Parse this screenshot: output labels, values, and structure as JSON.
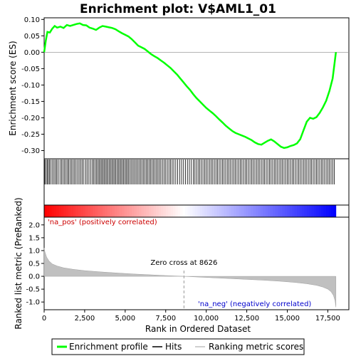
{
  "chart_data": {
    "type": "line",
    "title": "Enrichment plot: V$AML1_01",
    "es_panel": {
      "ylabel": "Enrichment score (ES)",
      "ylim": [
        -0.325,
        0.105
      ],
      "yticks": [
        "0.10",
        "0.05",
        "0.00",
        "-0.05",
        "-0.10",
        "-0.15",
        "-0.20",
        "-0.25",
        "-0.30"
      ],
      "ytick_values": [
        0.1,
        0.05,
        0.0,
        -0.05,
        -0.1,
        -0.15,
        -0.2,
        -0.25,
        -0.3
      ],
      "series": [
        {
          "name": "Enrichment profile",
          "color": "#00ff00",
          "x": [
            0,
            100,
            200,
            350,
            500,
            650,
            800,
            1000,
            1200,
            1400,
            1600,
            1800,
            2000,
            2200,
            2400,
            2600,
            2800,
            3000,
            3200,
            3400,
            3600,
            3800,
            4000,
            4200,
            4400,
            4600,
            4800,
            5000,
            5200,
            5400,
            5600,
            5800,
            6000,
            6200,
            6400,
            6600,
            6800,
            7000,
            7200,
            7400,
            7600,
            7800,
            8000,
            8200,
            8400,
            8600,
            8800,
            9000,
            9200,
            9400,
            9600,
            9800,
            10000,
            10200,
            10400,
            10600,
            10800,
            11000,
            11200,
            11400,
            11600,
            11800,
            12000,
            12200,
            12400,
            12600,
            12800,
            13000,
            13200,
            13400,
            13600,
            13800,
            14000,
            14200,
            14400,
            14600,
            14800,
            15000,
            15200,
            15400,
            15600,
            15800,
            16000,
            16200,
            16400,
            16600,
            16800,
            17000,
            17200,
            17400,
            17600,
            17800,
            17900,
            18000
          ],
          "y": [
            0.0,
            0.035,
            0.062,
            0.06,
            0.072,
            0.08,
            0.075,
            0.078,
            0.074,
            0.083,
            0.08,
            0.083,
            0.086,
            0.088,
            0.083,
            0.082,
            0.075,
            0.072,
            0.068,
            0.075,
            0.08,
            0.078,
            0.076,
            0.074,
            0.07,
            0.064,
            0.058,
            0.053,
            0.048,
            0.04,
            0.03,
            0.02,
            0.015,
            0.01,
            0.002,
            -0.006,
            -0.012,
            -0.018,
            -0.025,
            -0.032,
            -0.04,
            -0.048,
            -0.058,
            -0.068,
            -0.08,
            -0.092,
            -0.104,
            -0.115,
            -0.128,
            -0.14,
            -0.15,
            -0.16,
            -0.17,
            -0.178,
            -0.186,
            -0.195,
            -0.205,
            -0.214,
            -0.224,
            -0.232,
            -0.24,
            -0.246,
            -0.25,
            -0.254,
            -0.258,
            -0.263,
            -0.268,
            -0.275,
            -0.28,
            -0.282,
            -0.276,
            -0.27,
            -0.266,
            -0.272,
            -0.28,
            -0.288,
            -0.292,
            -0.29,
            -0.286,
            -0.283,
            -0.278,
            -0.265,
            -0.238,
            -0.212,
            -0.2,
            -0.203,
            -0.198,
            -0.185,
            -0.168,
            -0.148,
            -0.118,
            -0.08,
            -0.04,
            0.0
          ]
        }
      ]
    },
    "hits": {
      "name": "Hits",
      "color": "#000000",
      "positions": [
        40,
        120,
        190,
        260,
        330,
        420,
        520,
        610,
        700,
        780,
        870,
        980,
        1080,
        1170,
        1260,
        1350,
        1440,
        1520,
        1610,
        1700,
        1790,
        1880,
        1970,
        2070,
        2160,
        2260,
        2350,
        2450,
        2560,
        2650,
        2760,
        2860,
        2960,
        3050,
        3140,
        3230,
        3310,
        3390,
        3470,
        3550,
        3630,
        3700,
        3780,
        3860,
        3940,
        4020,
        4100,
        4180,
        4260,
        4340,
        4420,
        4500,
        4580,
        4660,
        4740,
        4820,
        4900,
        4980,
        5060,
        5140,
        5220,
        5310,
        5400,
        5490,
        5580,
        5670,
        5760,
        5850,
        5940,
        6030,
        6120,
        6210,
        6300,
        6390,
        6480,
        6570,
        6660,
        6750,
        6840,
        6930,
        7020,
        7110,
        7200,
        7300,
        7400,
        7500,
        7600,
        7700,
        7800,
        7900,
        8000,
        8120,
        8240,
        8360,
        8480,
        8600,
        8720,
        8840,
        8960,
        9080,
        9200,
        9300,
        9400,
        9500,
        9600,
        9700,
        9800,
        9900,
        10000,
        10100,
        10200,
        10300,
        10400,
        10500,
        10600,
        10700,
        10800,
        10900,
        11000,
        11100,
        11200,
        11300,
        11400,
        11500,
        11600,
        11700,
        11800,
        11900,
        12000,
        12100,
        12200,
        12300,
        12400,
        12500,
        12600,
        12700,
        12800,
        12900,
        13000,
        13100,
        13200,
        13300,
        13400,
        13500,
        13600,
        13700,
        13800,
        13900,
        14000,
        14100,
        14200,
        14300,
        14400,
        14500,
        14600,
        14700,
        14800,
        14900,
        15000,
        15100,
        15200,
        15300,
        15400,
        15500,
        15600,
        15700,
        15800,
        15900,
        16000,
        16100,
        16200,
        16300,
        16400,
        16500,
        16600,
        16700,
        16800,
        16900,
        17000,
        17100,
        17200,
        17300,
        17400,
        17500,
        17600,
        17700,
        17800,
        17900
      ]
    },
    "metric_panel": {
      "name": "Ranking metric scores",
      "color": "#c0c0c0",
      "ylabel": "Ranked list metric (PreRanked)",
      "ylim": [
        -1.3,
        2.3
      ],
      "yticks": [
        "2.0",
        "1.5",
        "1.0",
        "0.5",
        "0.0",
        "-0.5",
        "-1.0"
      ],
      "ytick_values": [
        2.0,
        1.5,
        1.0,
        0.5,
        0.0,
        -0.5,
        -1.0
      ],
      "x": [
        0,
        50,
        150,
        300,
        500,
        800,
        1200,
        1800,
        2500,
        3500,
        4500,
        5500,
        6500,
        7500,
        8626,
        9500,
        10500,
        11500,
        12500,
        13500,
        14500,
        15500,
        16200,
        16800,
        17200,
        17500,
        17700,
        17850,
        17950,
        18000
      ],
      "y": [
        1.1,
        0.95,
        0.75,
        0.6,
        0.48,
        0.4,
        0.33,
        0.27,
        0.22,
        0.17,
        0.13,
        0.09,
        0.06,
        0.03,
        0.0,
        -0.03,
        -0.06,
        -0.09,
        -0.12,
        -0.15,
        -0.19,
        -0.24,
        -0.29,
        -0.35,
        -0.42,
        -0.5,
        -0.6,
        -0.75,
        -0.95,
        -1.2
      ]
    },
    "zero_cross_label": "Zero cross at 8626",
    "zero_cross": 8626,
    "pos_label": "'na_pos' (positively correlated)",
    "neg_label": "'na_neg' (negatively correlated)",
    "xlabel": "Rank in Ordered Dataset",
    "xlim": [
      0,
      18800
    ],
    "xticks": [
      "0",
      "2,500",
      "5,000",
      "7,500",
      "10,000",
      "12,500",
      "15,000",
      "17,500"
    ],
    "xtick_values": [
      0,
      2500,
      5000,
      7500,
      10000,
      12500,
      15000,
      17500
    ],
    "n_genes": 18000,
    "legend": {
      "placement": "bottom",
      "entries": [
        "Enrichment profile",
        "Hits",
        "Ranking metric scores"
      ]
    }
  }
}
